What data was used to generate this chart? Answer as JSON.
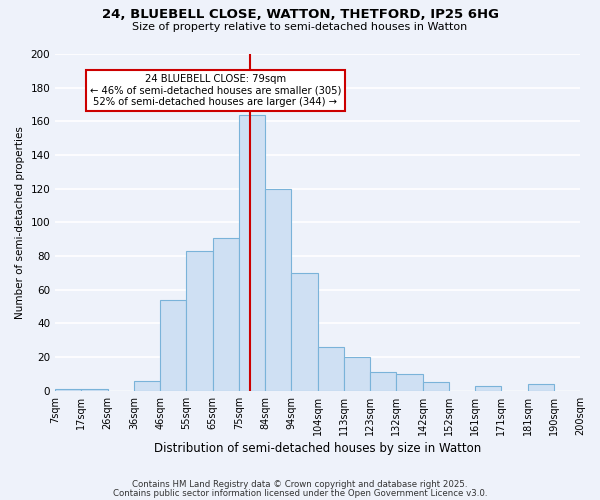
{
  "title": "24, BLUEBELL CLOSE, WATTON, THETFORD, IP25 6HG",
  "subtitle": "Size of property relative to semi-detached houses in Watton",
  "xlabel": "Distribution of semi-detached houses by size in Watton",
  "ylabel": "Number of semi-detached properties",
  "bin_labels": [
    "7sqm",
    "17sqm",
    "26sqm",
    "36sqm",
    "46sqm",
    "55sqm",
    "65sqm",
    "75sqm",
    "84sqm",
    "94sqm",
    "104sqm",
    "113sqm",
    "123sqm",
    "132sqm",
    "142sqm",
    "152sqm",
    "161sqm",
    "171sqm",
    "181sqm",
    "190sqm",
    "200sqm"
  ],
  "bar_heights": [
    1,
    1,
    0,
    6,
    54,
    83,
    91,
    164,
    120,
    70,
    26,
    20,
    11,
    10,
    5,
    0,
    3,
    0,
    4,
    0
  ],
  "bar_color": "#cfe0f3",
  "bar_edge_color": "#7ab3d9",
  "property_value_bin": 7,
  "vline_color": "#cc0000",
  "annotation_text": "24 BLUEBELL CLOSE: 79sqm\n← 46% of semi-detached houses are smaller (305)\n52% of semi-detached houses are larger (344) →",
  "annotation_box_edge_color": "#cc0000",
  "annotation_box_face_color": "#ffffff",
  "ylim": [
    0,
    200
  ],
  "yticks": [
    0,
    20,
    40,
    60,
    80,
    100,
    120,
    140,
    160,
    180,
    200
  ],
  "background_color": "#eef2fa",
  "grid_color": "#ffffff",
  "footer_line1": "Contains HM Land Registry data © Crown copyright and database right 2025.",
  "footer_line2": "Contains public sector information licensed under the Open Government Licence v3.0."
}
